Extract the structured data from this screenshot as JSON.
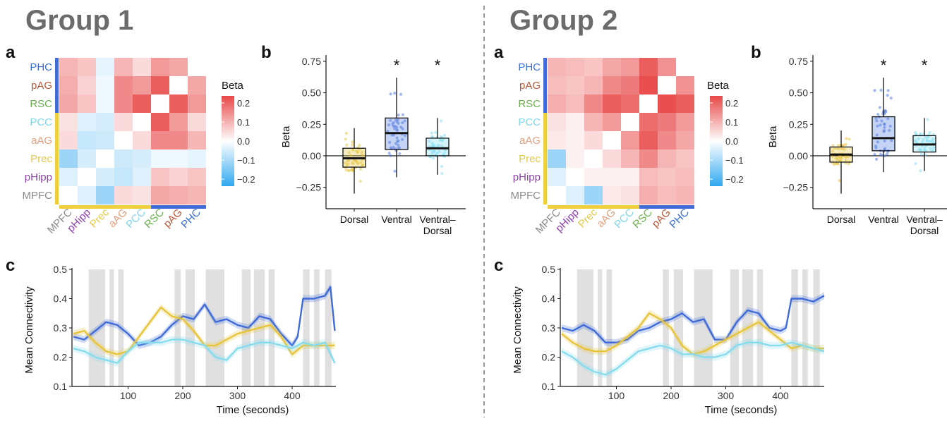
{
  "groups": [
    {
      "title": "Group 1",
      "panel_letters": {
        "a": "a",
        "b": "b",
        "c": "c"
      },
      "matrix": {
        "labels": [
          "PHC",
          "pAG",
          "RSC",
          "PCC",
          "aAG",
          "Prec",
          "pHipp",
          "MPFC"
        ],
        "label_colors": [
          "#3b6fd6",
          "#b8583a",
          "#6ab04c",
          "#7fd6e8",
          "#e0a080",
          "#e2c94a",
          "#8e44ad",
          "#8c8c8c"
        ],
        "legend_title": "Beta",
        "legend_ticks": [
          "0.2",
          "0.1",
          "0.0",
          "−0.1",
          "−0.2"
        ],
        "values": [
          [
            0.0,
            0.12,
            0.14,
            0.05,
            0.1,
            -0.03,
            0.08,
            0.1
          ],
          [
            0.12,
            0.0,
            0.22,
            0.14,
            0.16,
            -0.02,
            0.06,
            0.11
          ],
          [
            0.14,
            0.22,
            0.0,
            0.22,
            0.16,
            -0.02,
            0.08,
            0.12
          ],
          [
            0.05,
            0.14,
            0.22,
            0.0,
            0.05,
            -0.05,
            -0.04,
            0.04
          ],
          [
            0.1,
            0.16,
            0.16,
            0.05,
            0.0,
            -0.06,
            -0.07,
            0.05
          ],
          [
            -0.03,
            -0.02,
            -0.02,
            -0.05,
            -0.06,
            0.0,
            -0.05,
            -0.12
          ],
          [
            0.08,
            0.06,
            0.08,
            -0.04,
            -0.07,
            -0.05,
            0.0,
            -0.04
          ],
          [
            0.1,
            0.11,
            0.12,
            0.04,
            0.05,
            -0.12,
            -0.04,
            0.0
          ]
        ]
      },
      "box": {
        "ylabel": "Beta",
        "yticks": [
          "0.75",
          "0.50",
          "0.25",
          "0.00",
          "−0.25"
        ],
        "categories": [
          "Dorsal",
          "Ventral",
          "Ventral–",
          "Dorsal"
        ],
        "stars": [
          "*",
          "*"
        ],
        "colors": [
          "#e8c84a",
          "#5a80e0",
          "#86dff0"
        ],
        "stats": [
          {
            "q1": -0.09,
            "median": -0.02,
            "q3": 0.06,
            "min": -0.3,
            "max": 0.22
          },
          {
            "q1": 0.05,
            "median": 0.18,
            "q3": 0.3,
            "min": -0.17,
            "max": 0.62
          },
          {
            "q1": 0.0,
            "median": 0.06,
            "q3": 0.14,
            "min": -0.15,
            "max": 0.3
          }
        ]
      },
      "line": {
        "ylabel": "Mean Connectivity",
        "xlabel": "Time (seconds)",
        "xticks": [
          "100",
          "200",
          "300",
          "400"
        ],
        "yticks": [
          "0.5",
          "0.4",
          "0.3",
          "0.2",
          "0.1"
        ],
        "shaded": [
          [
            28,
            58
          ],
          [
            66,
            74
          ],
          [
            82,
            92
          ],
          [
            185,
            196
          ],
          [
            205,
            222
          ],
          [
            242,
            276
          ],
          [
            308,
            324
          ],
          [
            330,
            350
          ],
          [
            357,
            368
          ],
          [
            420,
            432
          ],
          [
            440,
            450
          ],
          [
            460,
            472
          ]
        ],
        "series": [
          {
            "color": "#3f6ad8",
            "t": [
              0,
              20,
              40,
              60,
              80,
              100,
              120,
              140,
              160,
              180,
              200,
              220,
              240,
              260,
              280,
              300,
              320,
              340,
              360,
              380,
              400,
              410,
              420,
              440,
              460,
              470,
              478
            ],
            "v": [
              0.27,
              0.26,
              0.29,
              0.32,
              0.31,
              0.28,
              0.24,
              0.25,
              0.27,
              0.31,
              0.34,
              0.33,
              0.38,
              0.32,
              0.33,
              0.31,
              0.3,
              0.34,
              0.33,
              0.28,
              0.24,
              0.27,
              0.4,
              0.4,
              0.41,
              0.44,
              0.29
            ]
          },
          {
            "color": "#e8c43a",
            "t": [
              0,
              20,
              40,
              60,
              80,
              100,
              120,
              140,
              160,
              180,
              200,
              220,
              240,
              260,
              280,
              300,
              320,
              340,
              360,
              380,
              400,
              420,
              440,
              460,
              478
            ],
            "v": [
              0.28,
              0.29,
              0.25,
              0.22,
              0.21,
              0.22,
              0.27,
              0.32,
              0.37,
              0.34,
              0.33,
              0.29,
              0.24,
              0.24,
              0.26,
              0.28,
              0.29,
              0.3,
              0.31,
              0.27,
              0.21,
              0.24,
              0.24,
              0.24,
              0.24
            ]
          },
          {
            "color": "#86dcec",
            "t": [
              0,
              20,
              40,
              60,
              80,
              100,
              120,
              140,
              160,
              180,
              200,
              220,
              240,
              260,
              280,
              300,
              320,
              340,
              360,
              380,
              400,
              420,
              440,
              460,
              478
            ],
            "v": [
              0.23,
              0.22,
              0.2,
              0.19,
              0.18,
              0.22,
              0.25,
              0.25,
              0.25,
              0.26,
              0.26,
              0.25,
              0.24,
              0.2,
              0.19,
              0.23,
              0.24,
              0.25,
              0.25,
              0.24,
              0.23,
              0.25,
              0.24,
              0.25,
              0.18
            ]
          }
        ]
      }
    },
    {
      "title": "Group 2",
      "panel_letters": {
        "a": "a",
        "b": "b",
        "c": "c"
      },
      "matrix": {
        "labels": [
          "PHC",
          "pAG",
          "RSC",
          "PCC",
          "aAG",
          "Prec",
          "pHipp",
          "MPFC"
        ],
        "label_colors": [
          "#3b6fd6",
          "#b8583a",
          "#6ab04c",
          "#7fd6e8",
          "#e0a080",
          "#e2c94a",
          "#8e44ad",
          "#8c8c8c"
        ],
        "legend_title": "Beta",
        "legend_ticks": [
          "0.2",
          "0.1",
          "0.0",
          "−0.1",
          "−0.2"
        ],
        "values": [
          [
            0.0,
            0.15,
            0.22,
            0.14,
            0.12,
            0.08,
            0.09,
            0.1
          ],
          [
            0.15,
            0.0,
            0.24,
            0.18,
            0.16,
            0.1,
            0.08,
            0.09
          ],
          [
            0.22,
            0.24,
            0.0,
            0.2,
            0.22,
            0.16,
            0.09,
            0.11
          ],
          [
            0.14,
            0.18,
            0.2,
            0.0,
            0.14,
            0.1,
            0.02,
            0.04
          ],
          [
            0.12,
            0.16,
            0.22,
            0.14,
            0.0,
            0.05,
            0.02,
            0.03
          ],
          [
            0.08,
            0.1,
            0.16,
            0.1,
            0.05,
            0.0,
            0.02,
            -0.12
          ],
          [
            0.09,
            0.08,
            0.09,
            0.02,
            0.02,
            0.02,
            0.0,
            -0.04
          ],
          [
            0.1,
            0.09,
            0.11,
            0.04,
            0.03,
            -0.12,
            -0.04,
            0.0
          ]
        ]
      },
      "box": {
        "ylabel": "Beta",
        "yticks": [
          "0.75",
          "0.50",
          "0.25",
          "0.00",
          "−0.25"
        ],
        "categories": [
          "Dorsal",
          "Ventral",
          "Ventral–",
          "Dorsal"
        ],
        "stars": [
          "*",
          "*"
        ],
        "colors": [
          "#e8c84a",
          "#5a80e0",
          "#86dff0"
        ],
        "stats": [
          {
            "q1": -0.05,
            "median": 0.01,
            "q3": 0.07,
            "min": -0.3,
            "max": 0.2
          },
          {
            "q1": 0.04,
            "median": 0.14,
            "q3": 0.31,
            "min": -0.13,
            "max": 0.62
          },
          {
            "q1": 0.03,
            "median": 0.09,
            "q3": 0.16,
            "min": -0.12,
            "max": 0.3
          }
        ]
      },
      "line": {
        "ylabel": "Mean Connectivity",
        "xlabel": "Time (seconds)",
        "xticks": [
          "100",
          "200",
          "300",
          "400"
        ],
        "yticks": [
          "0.5",
          "0.4",
          "0.3",
          "0.2",
          "0.1"
        ],
        "shaded": [
          [
            28,
            58
          ],
          [
            66,
            74
          ],
          [
            82,
            92
          ],
          [
            185,
            196
          ],
          [
            205,
            222
          ],
          [
            242,
            276
          ],
          [
            308,
            324
          ],
          [
            330,
            350
          ],
          [
            357,
            368
          ],
          [
            420,
            432
          ],
          [
            440,
            450
          ],
          [
            460,
            472
          ]
        ],
        "series": [
          {
            "color": "#3f6ad8",
            "t": [
              0,
              20,
              40,
              60,
              80,
              100,
              120,
              140,
              160,
              180,
              200,
              220,
              240,
              260,
              280,
              300,
              320,
              340,
              360,
              380,
              400,
              410,
              420,
              440,
              460,
              480
            ],
            "v": [
              0.3,
              0.29,
              0.31,
              0.29,
              0.25,
              0.25,
              0.26,
              0.29,
              0.3,
              0.32,
              0.33,
              0.35,
              0.32,
              0.33,
              0.26,
              0.26,
              0.32,
              0.36,
              0.35,
              0.3,
              0.29,
              0.3,
              0.4,
              0.4,
              0.39,
              0.41
            ]
          },
          {
            "color": "#e8c43a",
            "t": [
              0,
              20,
              40,
              60,
              80,
              100,
              120,
              140,
              160,
              180,
              200,
              220,
              240,
              260,
              280,
              300,
              320,
              340,
              360,
              380,
              400,
              420,
              440,
              460,
              480
            ],
            "v": [
              0.28,
              0.25,
              0.23,
              0.22,
              0.22,
              0.24,
              0.27,
              0.3,
              0.35,
              0.33,
              0.3,
              0.24,
              0.21,
              0.22,
              0.24,
              0.26,
              0.28,
              0.3,
              0.32,
              0.29,
              0.26,
              0.23,
              0.24,
              0.23,
              0.23
            ]
          },
          {
            "color": "#86dcec",
            "t": [
              0,
              20,
              40,
              60,
              80,
              100,
              120,
              140,
              160,
              180,
              200,
              220,
              240,
              260,
              280,
              300,
              320,
              340,
              360,
              380,
              400,
              420,
              440,
              460,
              480
            ],
            "v": [
              0.22,
              0.2,
              0.17,
              0.15,
              0.14,
              0.16,
              0.19,
              0.22,
              0.23,
              0.24,
              0.23,
              0.21,
              0.21,
              0.2,
              0.2,
              0.21,
              0.24,
              0.25,
              0.25,
              0.24,
              0.24,
              0.25,
              0.24,
              0.23,
              0.22
            ]
          }
        ]
      }
    }
  ],
  "chart_data": [
    {
      "type": "heatmap",
      "title": "Group 1",
      "xlabel": "",
      "ylabel": "",
      "row_labels": [
        "PHC",
        "pAG",
        "RSC",
        "PCC",
        "aAG",
        "Prec",
        "pHipp",
        "MPFC"
      ],
      "col_labels": [
        "MPFC",
        "pHipp",
        "Prec",
        "aAG",
        "PCC",
        "RSC",
        "pAG",
        "PHC"
      ],
      "colorbar_title": "Beta",
      "clim": [
        -0.25,
        0.25
      ]
    },
    {
      "type": "bar",
      "title": "",
      "categories": [
        "Dorsal",
        "Ventral",
        "Ventral–Dorsal"
      ],
      "ylabel": "Beta",
      "ylim": [
        -0.4,
        0.8
      ],
      "medians": [
        -0.02,
        0.18,
        0.06
      ],
      "q1": [
        -0.09,
        0.05,
        0.0
      ],
      "q3": [
        0.06,
        0.3,
        0.14
      ],
      "significant": [
        false,
        true,
        true
      ]
    },
    {
      "type": "line",
      "xlabel": "Time (seconds)",
      "ylabel": "Mean Connectivity",
      "xlim": [
        0,
        480
      ],
      "ylim": [
        0.1,
        0.5
      ]
    },
    {
      "type": "heatmap",
      "title": "Group 2",
      "xlabel": "",
      "ylabel": "",
      "row_labels": [
        "PHC",
        "pAG",
        "RSC",
        "PCC",
        "aAG",
        "Prec",
        "pHipp",
        "MPFC"
      ],
      "col_labels": [
        "MPFC",
        "pHipp",
        "Prec",
        "aAG",
        "PCC",
        "RSC",
        "pAG",
        "PHC"
      ],
      "colorbar_title": "Beta",
      "clim": [
        -0.25,
        0.25
      ]
    },
    {
      "type": "bar",
      "title": "",
      "categories": [
        "Dorsal",
        "Ventral",
        "Ventral–Dorsal"
      ],
      "ylabel": "Beta",
      "ylim": [
        -0.4,
        0.8
      ],
      "medians": [
        0.01,
        0.14,
        0.09
      ],
      "q1": [
        -0.05,
        0.04,
        0.03
      ],
      "q3": [
        0.07,
        0.31,
        0.16
      ],
      "significant": [
        false,
        true,
        true
      ]
    },
    {
      "type": "line",
      "xlabel": "Time (seconds)",
      "ylabel": "Mean Connectivity",
      "xlim": [
        0,
        480
      ],
      "ylim": [
        0.1,
        0.5
      ]
    }
  ]
}
